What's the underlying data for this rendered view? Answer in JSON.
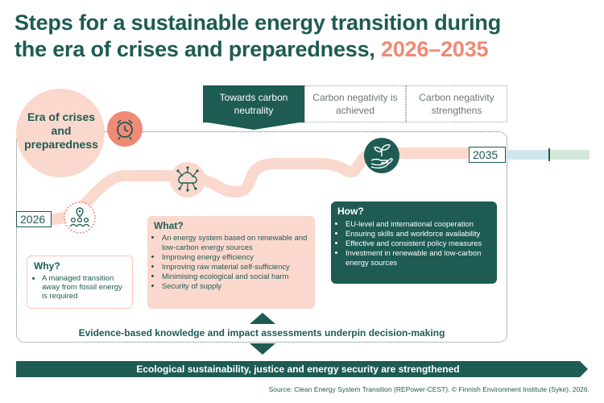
{
  "title": {
    "line1": "Steps for a sustainable energy transition during",
    "line2": "the era of crises and preparedness,",
    "years": "2026–2035"
  },
  "phases": [
    {
      "label": "Towards carbon neutrality"
    },
    {
      "label": "Carbon negativity is achieved"
    },
    {
      "label": "Carbon negativity strengthens"
    }
  ],
  "era": {
    "label": "Era of crises and preparedness"
  },
  "timeline": {
    "start_year": "2026",
    "end_year": "2035"
  },
  "why": {
    "heading": "Why?",
    "items": [
      "A managed transition away from fossil energy is required"
    ]
  },
  "what": {
    "heading": "What?",
    "items": [
      "An energy system based on renewable and low-carbon energy sources",
      "Improving energy efficiency",
      "Improving raw material self-sufficiency",
      "Minimising ecological and social harm",
      "Security of supply"
    ]
  },
  "how": {
    "heading": "How?",
    "items": [
      "EU-level and international cooperation",
      "Ensuring skills and workforce availability",
      "Effective and consistent policy measures",
      "Investment in renewable and low-carbon energy sources"
    ]
  },
  "evidence": "Evidence-based knowledge and impact assessments underpin decision-making",
  "banner": "Ecological sustainability, justice and energy security are strengthened",
  "source": "Source: Clean Energy System Transition (REPower-CEST). © Finnish Environment Institute (Syke), 2026.",
  "colors": {
    "dark_teal": "#1d5b53",
    "salmon": "#ef8a74",
    "light_salmon": "#fbd8cd",
    "light_blue": "#cfe6ee",
    "light_green": "#d3e8d9"
  },
  "icons": [
    "alarm-clock-icon",
    "people-location-icon",
    "network-cloud-icon",
    "hand-plant-icon"
  ]
}
